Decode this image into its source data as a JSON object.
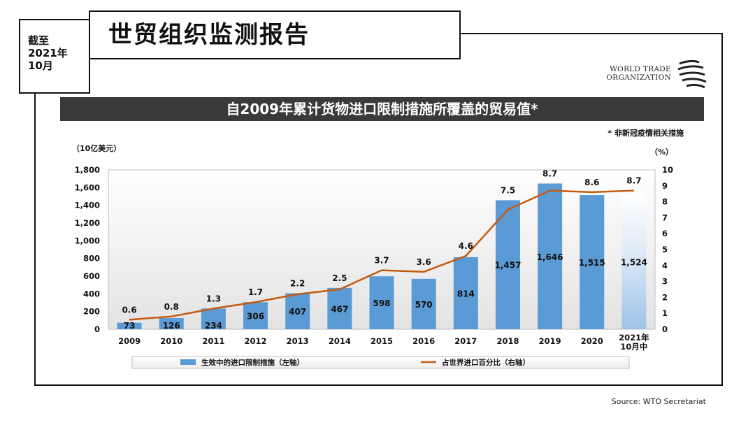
{
  "date_box": {
    "text": "截至\n2021年\n10月"
  },
  "page_title": "世贸组织监测报告",
  "logo": {
    "line1": "WORLD TRADE",
    "line2": "ORGANIZATION"
  },
  "source": "Source: WTO Secretariat",
  "chart_data": {
    "type": "bar",
    "title": "自2009年累计货物进口限制措施所覆盖的贸易值*",
    "footnote": "* 非新冠疫情相关措施",
    "ylabel_left": "（10亿美元）",
    "ylabel_right": "（%）",
    "xlabel": "",
    "categories": [
      "2009",
      "2010",
      "2011",
      "2012",
      "2013",
      "2014",
      "2015",
      "2016",
      "2017",
      "2018",
      "2019",
      "2020",
      "2021年\n10月中"
    ],
    "ylim_left": [
      0,
      1800
    ],
    "ylim_right": [
      0,
      10
    ],
    "left_ticks": [
      "0",
      "200",
      "400",
      "600",
      "800",
      "1,000",
      "1,200",
      "1,400",
      "1,600",
      "1,800"
    ],
    "right_ticks": [
      "0",
      "1",
      "2",
      "3",
      "4",
      "5",
      "6",
      "7",
      "8",
      "9",
      "10"
    ],
    "grid": false,
    "legend_position": "bottom",
    "series": [
      {
        "name": "生效中的进口限制措施（左轴）",
        "type": "bar",
        "axis": "left",
        "color": "#5b9bd5",
        "values": [
          73,
          126,
          234,
          306,
          407,
          467,
          598,
          570,
          814,
          1457,
          1646,
          1515,
          1524
        ],
        "labels": [
          "73",
          "126",
          "234",
          "306",
          "407",
          "467",
          "598",
          "570",
          "814",
          "1,457",
          "1,646",
          "1,515",
          "1,524"
        ]
      },
      {
        "name": "占世界进口百分比（右轴）",
        "type": "line",
        "axis": "right",
        "color": "#c55a11",
        "values": [
          0.6,
          0.8,
          1.3,
          1.7,
          2.2,
          2.5,
          3.7,
          3.6,
          4.6,
          7.5,
          8.7,
          8.6,
          8.7
        ],
        "labels": [
          "0.6",
          "0.8",
          "1.3",
          "1.7",
          "2.2",
          "2.5",
          "3.7",
          "3.6",
          "4.6",
          "7.5",
          "8.7",
          "8.6",
          "8.7"
        ]
      }
    ]
  }
}
